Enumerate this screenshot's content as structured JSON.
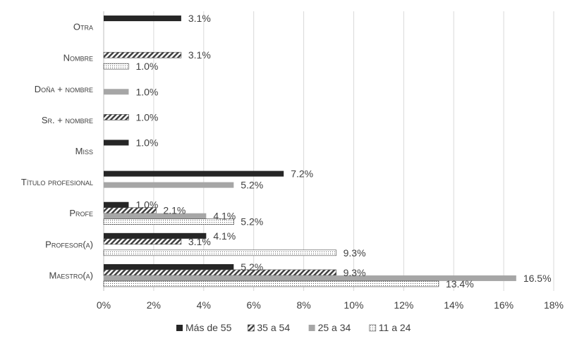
{
  "chart_data": {
    "type": "bar",
    "orientation": "horizontal",
    "categories": [
      "Maestro(a)",
      "Profesor(a)",
      "Profe",
      "Título profesional",
      "Miss",
      "Sr. + nombre",
      "Doña + nombre",
      "Nombre",
      "Otra"
    ],
    "series": [
      {
        "name": "Más de 55",
        "values": [
          5.2,
          4.1,
          1.0,
          7.2,
          1.0,
          null,
          null,
          null,
          3.1
        ],
        "color": "#262626",
        "pattern": "solid"
      },
      {
        "name": "35 a 54",
        "values": [
          9.3,
          3.1,
          2.1,
          null,
          null,
          1.0,
          null,
          3.1,
          null
        ],
        "color": "#404040",
        "pattern": "diagonal-hatch"
      },
      {
        "name": "25 a 34",
        "values": [
          16.5,
          null,
          4.1,
          5.2,
          null,
          null,
          1.0,
          null,
          null
        ],
        "color": "#a6a6a6",
        "pattern": "solid"
      },
      {
        "name": "11 a 24",
        "values": [
          13.4,
          9.3,
          5.2,
          null,
          null,
          null,
          null,
          1.0,
          null
        ],
        "color": "#7f7f7f",
        "pattern": "dotted"
      }
    ],
    "x_ticks": [
      "0%",
      "2%",
      "4%",
      "6%",
      "8%",
      "10%",
      "12%",
      "14%",
      "16%",
      "18%"
    ],
    "xlim": [
      0,
      18
    ],
    "unit": "%",
    "grid": "vertical",
    "legend_position": "bottom"
  }
}
